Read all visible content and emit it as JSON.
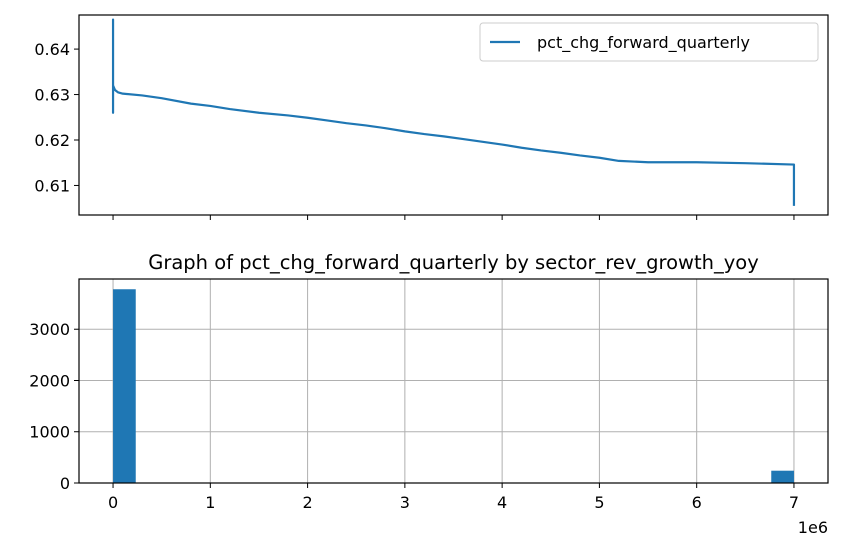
{
  "chart_data": [
    {
      "type": "line",
      "title": "",
      "xlabel": "",
      "ylabel": "",
      "xlim": [
        -350000,
        7350000
      ],
      "ylim": [
        0.6035,
        0.6475
      ],
      "yticks": [
        0.61,
        0.62,
        0.63,
        0.64
      ],
      "ytick_labels": [
        "0.61",
        "0.62",
        "0.63",
        "0.64"
      ],
      "xticks": [
        0,
        1000000,
        2000000,
        3000000,
        4000000,
        5000000,
        6000000,
        7000000
      ],
      "x_tick_labels_shown": false,
      "grid": false,
      "legend": {
        "position": "upper right",
        "entries": [
          "pct_chg_forward_quarterly"
        ]
      },
      "series": [
        {
          "name": "pct_chg_forward_quarterly",
          "color": "#1f77b4",
          "x": [
            0,
            0,
            0,
            0,
            0,
            20000,
            50000,
            100000,
            300000,
            500000,
            800000,
            1000000,
            1200000,
            1500000,
            1800000,
            2000000,
            2200000,
            2400000,
            2600000,
            2800000,
            3000000,
            3200000,
            3400000,
            3600000,
            3800000,
            4000000,
            4200000,
            4400000,
            4600000,
            4800000,
            5000000,
            5200000,
            5500000,
            6000000,
            6500000,
            7000000,
            7000000
          ],
          "y": [
            0.6295,
            0.6465,
            0.626,
            0.6345,
            0.632,
            0.631,
            0.6305,
            0.6302,
            0.6298,
            0.6292,
            0.628,
            0.6275,
            0.6268,
            0.626,
            0.6254,
            0.6249,
            0.6243,
            0.6237,
            0.6232,
            0.6226,
            0.6219,
            0.6213,
            0.6208,
            0.6202,
            0.6196,
            0.619,
            0.6183,
            0.6177,
            0.6172,
            0.6166,
            0.6161,
            0.6154,
            0.6151,
            0.6151,
            0.6149,
            0.6146,
            0.6055
          ]
        }
      ]
    },
    {
      "type": "bar",
      "title": "Graph of pct_chg_forward_quarterly by sector_rev_growth_yoy",
      "xlabel": "",
      "ylabel": "",
      "xlim": [
        -350000,
        7350000
      ],
      "ylim": [
        0,
        3980
      ],
      "xticks": [
        0,
        1000000,
        2000000,
        3000000,
        4000000,
        5000000,
        6000000,
        7000000
      ],
      "xtick_labels": [
        "0",
        "1",
        "2",
        "3",
        "4",
        "5",
        "6",
        "7"
      ],
      "x_offset_label": "1e6",
      "yticks": [
        0,
        1000,
        2000,
        3000
      ],
      "ytick_labels": [
        "0",
        "1000",
        "2000",
        "3000"
      ],
      "grid": true,
      "bin_width": 233333,
      "series": [
        {
          "name": "",
          "color": "#1f77b4",
          "bins": [
            {
              "x_start": 0,
              "count": 3780
            },
            {
              "x_start": 6766667,
              "count": 240
            }
          ]
        }
      ]
    }
  ]
}
